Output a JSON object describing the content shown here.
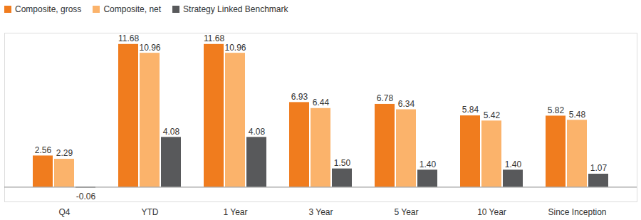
{
  "chart_data": {
    "type": "bar",
    "categories": [
      "Q4",
      "YTD",
      "1 Year",
      "3 Year",
      "5 Year",
      "10 Year",
      "Since Inception"
    ],
    "series": [
      {
        "name": "Composite, gross",
        "color": "#f07c1e",
        "values": [
          2.56,
          11.68,
          11.68,
          6.93,
          6.78,
          5.84,
          5.82
        ],
        "value_labels": [
          "2.56",
          "11.68",
          "11.68",
          "6.93",
          "6.78",
          "5.84",
          "5.82"
        ]
      },
      {
        "name": "Composite, net",
        "color": "#fbb36b",
        "values": [
          2.29,
          10.96,
          10.96,
          6.44,
          6.34,
          5.42,
          5.48
        ],
        "value_labels": [
          "2.29",
          "10.96",
          "10.96",
          "6.44",
          "6.34",
          "5.42",
          "5.48"
        ]
      },
      {
        "name": "Strategy Linked Benchmark",
        "color": "#58595b",
        "values": [
          -0.06,
          4.08,
          4.08,
          1.5,
          1.4,
          1.4,
          1.07
        ],
        "value_labels": [
          "-0.06",
          "4.08",
          "4.08",
          "1.50",
          "1.40",
          "1.40",
          "1.07"
        ]
      }
    ],
    "ylim": [
      -1.2,
      12.6
    ],
    "yticks": [
      0
    ],
    "legend": "top-left",
    "data_labels": true,
    "tick_labels": "x",
    "grid": false
  }
}
